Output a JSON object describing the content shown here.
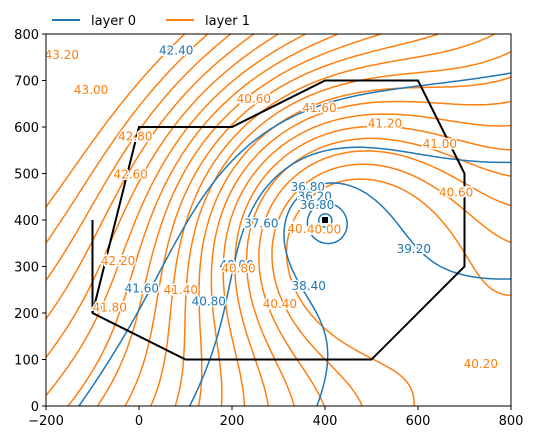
{
  "chart_data": {
    "type": "line",
    "title": "",
    "xlabel": "",
    "ylabel": "",
    "xlim": [
      -200,
      800
    ],
    "ylim": [
      0,
      800
    ],
    "x_ticks": [
      "−200",
      "0",
      "200",
      "400",
      "600",
      "800"
    ],
    "y_ticks": [
      "0",
      "100",
      "200",
      "300",
      "400",
      "500",
      "600",
      "700",
      "800"
    ],
    "grid": false,
    "legend_placement": "top-left, above axes",
    "colors": {
      "layer0": "#1f77b4",
      "layer1": "#ff7f0e",
      "boundary": "#000000"
    },
    "series": [
      {
        "name": "layer 0",
        "contour_labels": [
          {
            "text": "42.40",
            "x": 80,
            "y": 765
          },
          {
            "text": "36.80",
            "x": 363,
            "y": 471
          },
          {
            "text": "36.20",
            "x": 378,
            "y": 451
          },
          {
            "text": "36.80",
            "x": 383,
            "y": 432
          },
          {
            "text": "37.60",
            "x": 263,
            "y": 393
          },
          {
            "text": "38.40",
            "x": 365,
            "y": 258
          },
          {
            "text": "39.20",
            "x": 591,
            "y": 338
          },
          {
            "text": "40.00",
            "x": 210,
            "y": 303
          },
          {
            "text": "40.80",
            "x": 150,
            "y": 225
          },
          {
            "text": "41.60",
            "x": 6,
            "y": 253
          }
        ]
      },
      {
        "name": "layer 1",
        "contour_labels": [
          {
            "text": "43.20",
            "x": -166,
            "y": 755
          },
          {
            "text": "43.00",
            "x": -103,
            "y": 680
          },
          {
            "text": "42.80",
            "x": -8,
            "y": 580
          },
          {
            "text": "42.60",
            "x": -18,
            "y": 498
          },
          {
            "text": "42.20",
            "x": -45,
            "y": 312
          },
          {
            "text": "41.80",
            "x": -63,
            "y": 212
          },
          {
            "text": "41.40",
            "x": 90,
            "y": 250
          },
          {
            "text": "40.60",
            "x": 247,
            "y": 660
          },
          {
            "text": "41.60",
            "x": 388,
            "y": 641
          },
          {
            "text": "41.20",
            "x": 529,
            "y": 608
          },
          {
            "text": "41.00",
            "x": 647,
            "y": 563
          },
          {
            "text": "40.60",
            "x": 682,
            "y": 459
          },
          {
            "text": "40.40",
            "x": 303,
            "y": 219
          },
          {
            "text": "40.40",
            "x": 356,
            "y": 381
          },
          {
            "text": "40.00",
            "x": 398,
            "y": 380
          },
          {
            "text": "40.20",
            "x": 735,
            "y": 90
          },
          {
            "text": "40.80",
            "x": 214,
            "y": 296
          }
        ]
      }
    ],
    "boundary": {
      "name": "",
      "x": [
        -100,
        0,
        200,
        400,
        600,
        700,
        700,
        500,
        100,
        -100,
        -100
      ],
      "y": [
        200,
        600,
        600,
        700,
        700,
        500,
        300,
        100,
        100,
        200,
        400
      ]
    },
    "well": {
      "x": 400,
      "y": 400
    }
  }
}
